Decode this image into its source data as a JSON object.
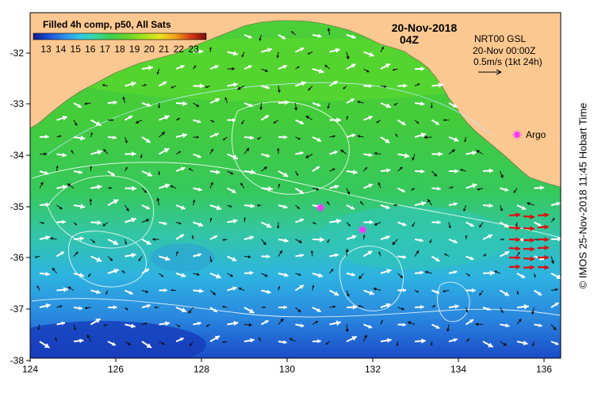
{
  "title": {
    "line1": "20-Nov-2018",
    "line2": "04Z"
  },
  "legend": {
    "title": "Filled 4h comp, p50, All Sats",
    "ticks": [
      "13",
      "14",
      "15",
      "16",
      "17",
      "18",
      "19",
      "20",
      "21",
      "22",
      "23"
    ],
    "colors": [
      "#0a1a8c",
      "#1e50d8",
      "#2f8ee8",
      "#2ec8e6",
      "#35d9a0",
      "#3fcf4a",
      "#6ad62a",
      "#a8e01e",
      "#e8e020",
      "#f2a21a",
      "#d83a14",
      "#7a0e0a"
    ]
  },
  "info": {
    "line1": "NRT00 GSL",
    "line2": "20-Nov 00:00Z",
    "line3": "0.5m/s (1kt 24h)"
  },
  "argo_label": "Argo",
  "credit": "© IMOS 25-Nov-2018 11:45 Hobart Time",
  "x_axis": {
    "ticks": [
      "124",
      "126",
      "128",
      "130",
      "132",
      "134",
      "136"
    ]
  },
  "y_axis": {
    "ticks": [
      "-32",
      "-33",
      "-34",
      "-35",
      "-36",
      "-37",
      "-38"
    ]
  },
  "colors": {
    "land": "#fcc891",
    "arrow_white": "#ffffff",
    "arrow_black": "#111111",
    "argo": "#ff33ff",
    "red_arrows": "#dd1010"
  }
}
